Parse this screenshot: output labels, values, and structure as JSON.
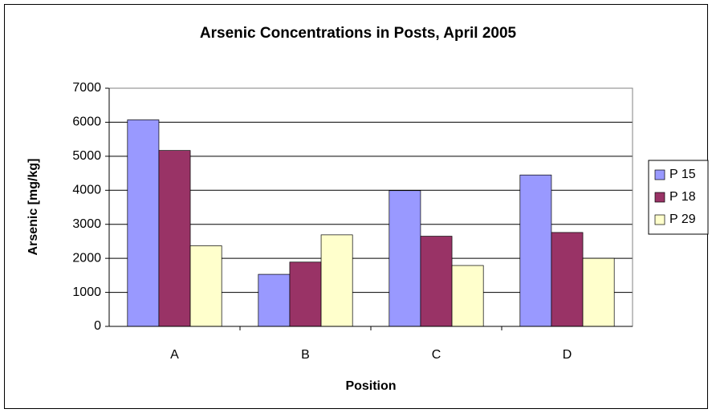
{
  "chart_data": {
    "type": "bar",
    "title": "Arsenic Concentrations in Posts, April 2005",
    "x_label": "Position",
    "y_label": "Arsenic [mg/kg]",
    "categories": [
      "A",
      "B",
      "C",
      "D"
    ],
    "series": [
      {
        "name": "P 15",
        "color": "#9999ff",
        "values": [
          6070,
          1530,
          3990,
          4450
        ]
      },
      {
        "name": "P 18",
        "color": "#993366",
        "values": [
          5170,
          1890,
          2650,
          2760
        ]
      },
      {
        "name": "P 29",
        "color": "#ffffcc",
        "values": [
          2370,
          2690,
          1790,
          2000
        ]
      }
    ],
    "ylim": [
      0,
      7000
    ],
    "yticks": [
      0,
      1000,
      2000,
      3000,
      4000,
      5000,
      6000,
      7000
    ],
    "grid": true,
    "legend": "right"
  }
}
